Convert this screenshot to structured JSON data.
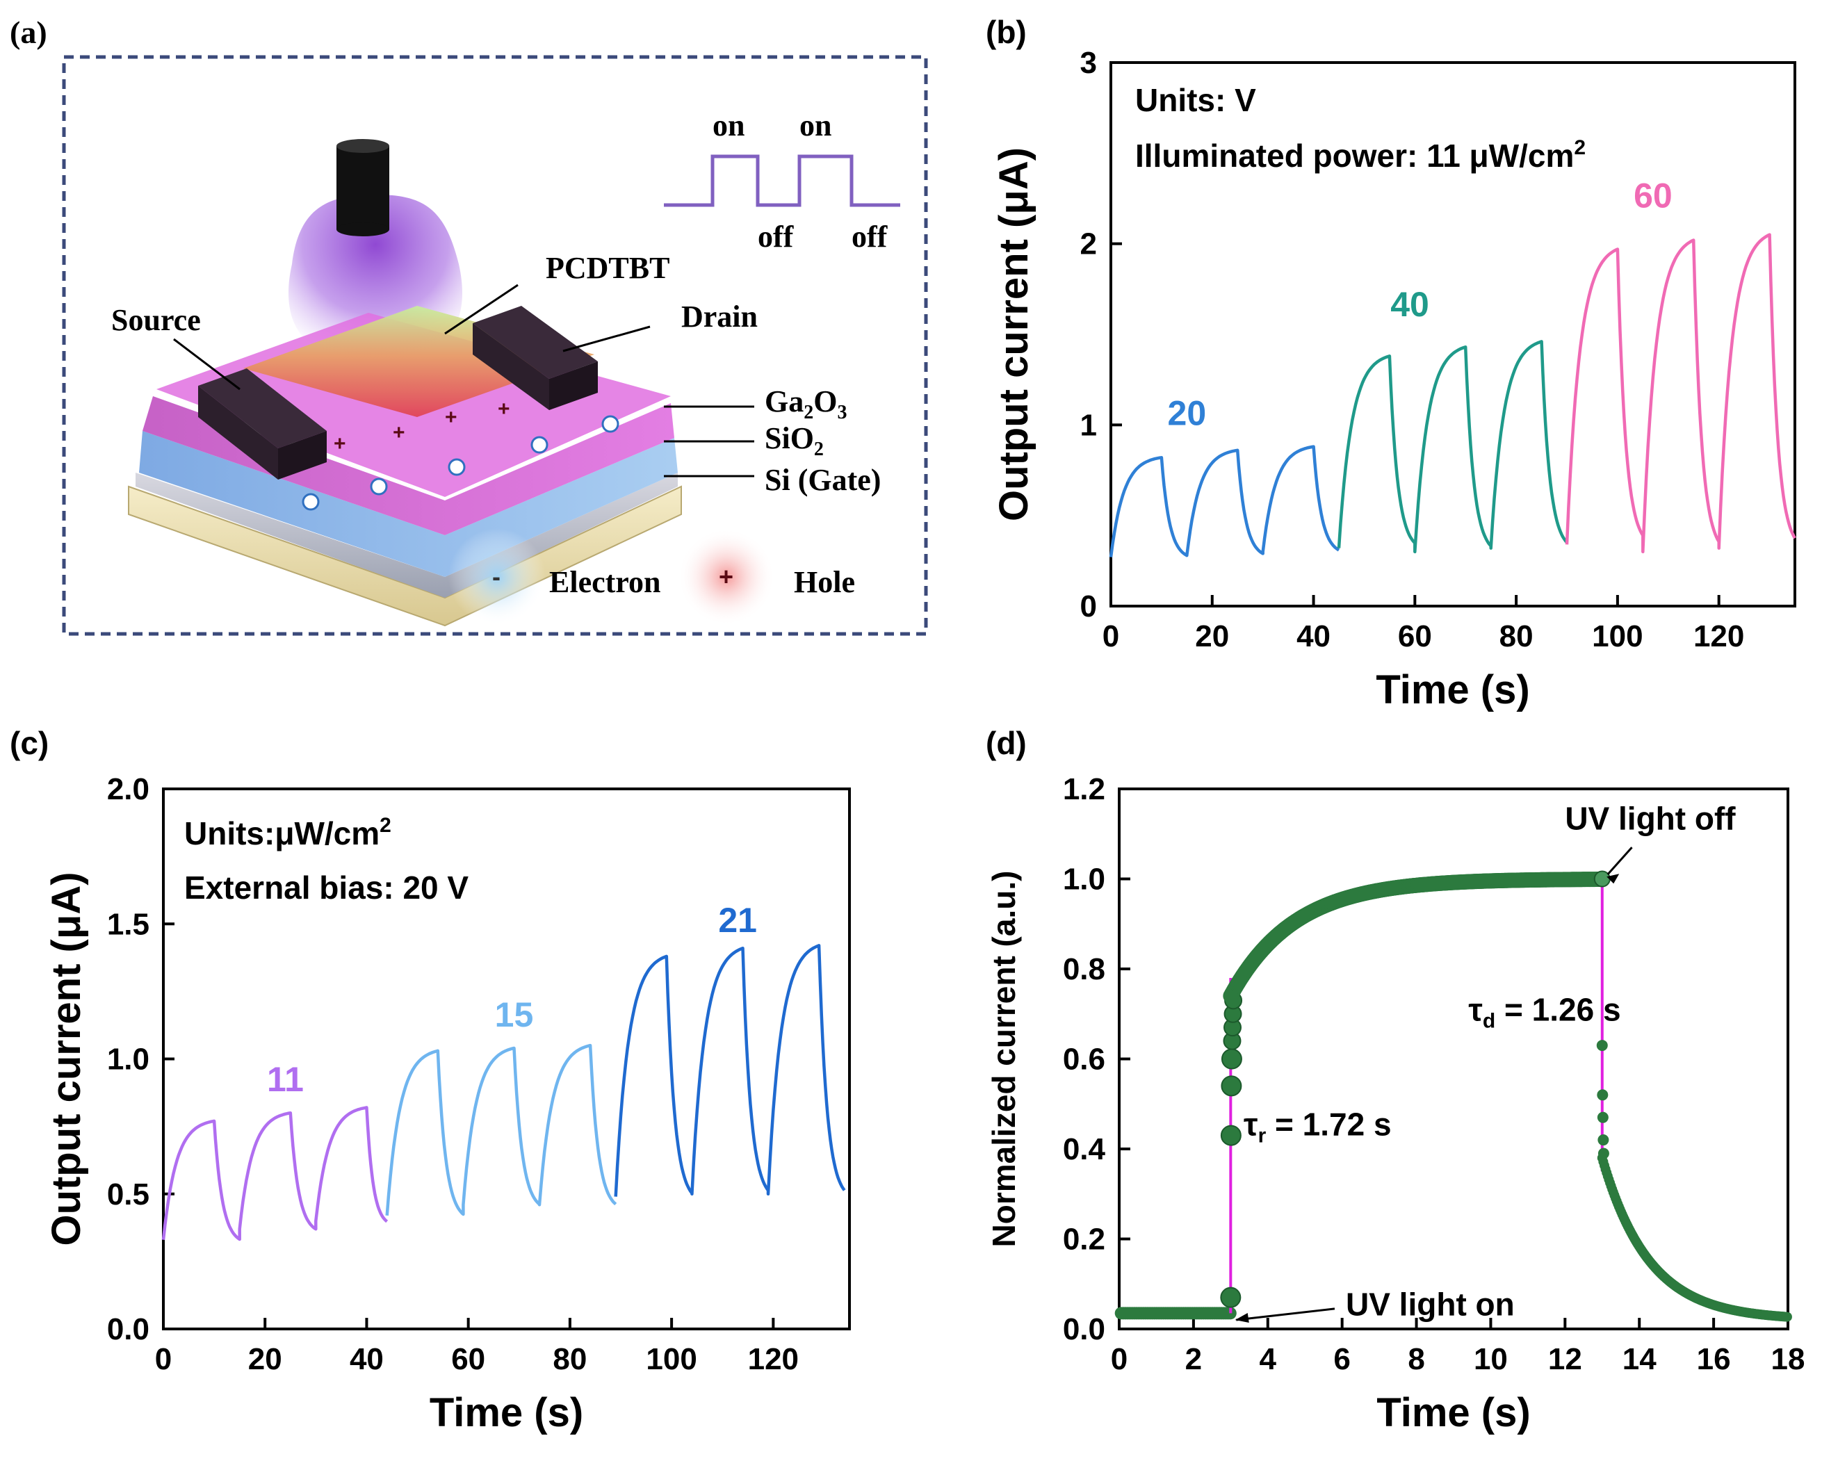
{
  "panels": {
    "a": {
      "label": "(a)",
      "schematic": {
        "pcdtbt": "PCDTBT",
        "source": "Source",
        "drain": "Drain",
        "ga2o3": "Ga",
        "ga2o3_sub1": "2",
        "ga2o3_mid": "O",
        "ga2o3_sub2": "3",
        "sio2": "SiO",
        "sio2_sub": "2",
        "si_gate": "Si (Gate)",
        "on1": "on",
        "on2": "on",
        "off1": "off",
        "off2": "off",
        "electron": "Electron",
        "hole": "Hole",
        "minus_sign": "-",
        "plus_sign": "+"
      }
    },
    "b": {
      "label": "(b)"
    },
    "c": {
      "label": "(c)"
    },
    "d": {
      "label": "(d)"
    }
  },
  "colors": {
    "axis": "#000000",
    "blue": "#2f80d6",
    "teal": "#1f9a8a",
    "pink": "#f06ab4",
    "purple": "#b06ef0",
    "light_blue": "#6fb5ef",
    "dark_blue": "#1f6ad0",
    "green": "#2c7a3e",
    "magenta": "#e020e0",
    "frame_dash": "#3b4a7a"
  },
  "chart_data": [
    {
      "id": "b",
      "type": "line",
      "xlabel": "Time (s)",
      "ylabel": "Output current (μA)",
      "xlim": [
        0,
        135
      ],
      "ylim": [
        0,
        3
      ],
      "xticks": [
        0,
        20,
        40,
        60,
        80,
        100,
        120
      ],
      "yticks": [
        0,
        1,
        2,
        3
      ],
      "annotations": [
        "Units: V",
        "Illuminated power: 11 μW/cm",
        "2"
      ],
      "series": [
        {
          "name": "20",
          "color": "blue",
          "segment": [
            0,
            45
          ],
          "cycles": [
            [
              0,
              10,
              15,
              0.27,
              0.82
            ],
            [
              15,
              25,
              30,
              0.28,
              0.86
            ],
            [
              30,
              40,
              45,
              0.3,
              0.88
            ]
          ],
          "final": 0.32
        },
        {
          "name": "40",
          "color": "teal",
          "segment": [
            45,
            90
          ],
          "cycles": [
            [
              45,
              55,
              60,
              0.32,
              1.38
            ],
            [
              60,
              70,
              75,
              0.3,
              1.43
            ],
            [
              75,
              85,
              90,
              0.32,
              1.46
            ]
          ],
          "final": 0.34
        },
        {
          "name": "60",
          "color": "pink",
          "segment": [
            90,
            135
          ],
          "cycles": [
            [
              90,
              100,
              105,
              0.34,
              1.97
            ],
            [
              105,
              115,
              120,
              0.3,
              2.02
            ],
            [
              120,
              130,
              135,
              0.32,
              2.05
            ]
          ],
          "final": 0.36
        }
      ],
      "series_labels": [
        {
          "text": "20",
          "x": 15,
          "y": 1.0,
          "color": "blue"
        },
        {
          "text": "40",
          "x": 59,
          "y": 1.6,
          "color": "teal"
        },
        {
          "text": "60",
          "x": 107,
          "y": 2.2,
          "color": "pink"
        }
      ]
    },
    {
      "id": "c",
      "type": "line",
      "xlabel": "Time (s)",
      "ylabel": "Output current (μA)",
      "xlim": [
        0,
        135
      ],
      "ylim": [
        0,
        2
      ],
      "xticks": [
        0,
        20,
        40,
        60,
        80,
        100,
        120
      ],
      "yticks": [
        0.0,
        0.5,
        1.0,
        1.5,
        2.0
      ],
      "yticklabels": [
        "0.0",
        "0.5",
        "1.0",
        "1.5",
        "2.0"
      ],
      "annotations": [
        "Units:μW/cm",
        "2",
        "External bias: 20 V"
      ],
      "series": [
        {
          "name": "11",
          "color": "purple",
          "segment": [
            0,
            44
          ],
          "cycles": [
            [
              0,
              10,
              15,
              0.33,
              0.77
            ],
            [
              15,
              25,
              30,
              0.37,
              0.8
            ],
            [
              30,
              40,
              44,
              0.4,
              0.82
            ]
          ],
          "final": 0.42
        },
        {
          "name": "15",
          "color": "light_blue",
          "segment": [
            44,
            89
          ],
          "cycles": [
            [
              44,
              54,
              59,
              0.42,
              1.03
            ],
            [
              59,
              69,
              74,
              0.46,
              1.04
            ],
            [
              74,
              84,
              89,
              0.46,
              1.05
            ]
          ],
          "final": 0.49
        },
        {
          "name": "21",
          "color": "dark_blue",
          "segment": [
            89,
            134
          ],
          "cycles": [
            [
              89,
              99,
              104,
              0.49,
              1.38
            ],
            [
              104,
              114,
              119,
              0.5,
              1.41
            ],
            [
              119,
              129,
              134,
              0.5,
              1.42
            ]
          ],
          "final": 0.52
        }
      ],
      "series_labels": [
        {
          "text": "11",
          "x": 24,
          "y": 0.88,
          "color": "purple"
        },
        {
          "text": "15",
          "x": 69,
          "y": 1.12,
          "color": "light_blue"
        },
        {
          "text": "21",
          "x": 113,
          "y": 1.47,
          "color": "dark_blue"
        }
      ]
    },
    {
      "id": "d",
      "type": "scatter",
      "xlabel": "Time (s)",
      "ylabel": "Normalized current (a.u.)",
      "xlim": [
        0,
        18
      ],
      "ylim": [
        0,
        1.2
      ],
      "xticks": [
        0,
        2,
        4,
        6,
        8,
        10,
        12,
        14,
        16,
        18
      ],
      "yticks": [
        0.0,
        0.2,
        0.4,
        0.6,
        0.8,
        1.0,
        1.2
      ],
      "yticklabels": [
        "0.0",
        "0.2",
        "0.4",
        "0.6",
        "0.8",
        "1.0",
        "1.2"
      ],
      "baseline": 0.035,
      "on_time": 3.0,
      "off_time": 13.0,
      "tau_r": 1.72,
      "tau_d": 1.26,
      "rise_points": [
        0.07,
        0.43,
        0.54,
        0.6,
        0.64,
        0.67,
        0.7,
        0.73
      ],
      "fall_points": [
        0.63,
        0.52,
        0.47,
        0.42,
        0.39
      ],
      "annotations": {
        "on_label": "UV light on",
        "off_label": "UV light off",
        "tau_r_label": "τ",
        "tau_r_sub": "r",
        "tau_r_value": " = 1.72 s",
        "tau_d_label": "τ",
        "tau_d_sub": "d",
        "tau_d_value": " = 1.26 s"
      }
    }
  ]
}
